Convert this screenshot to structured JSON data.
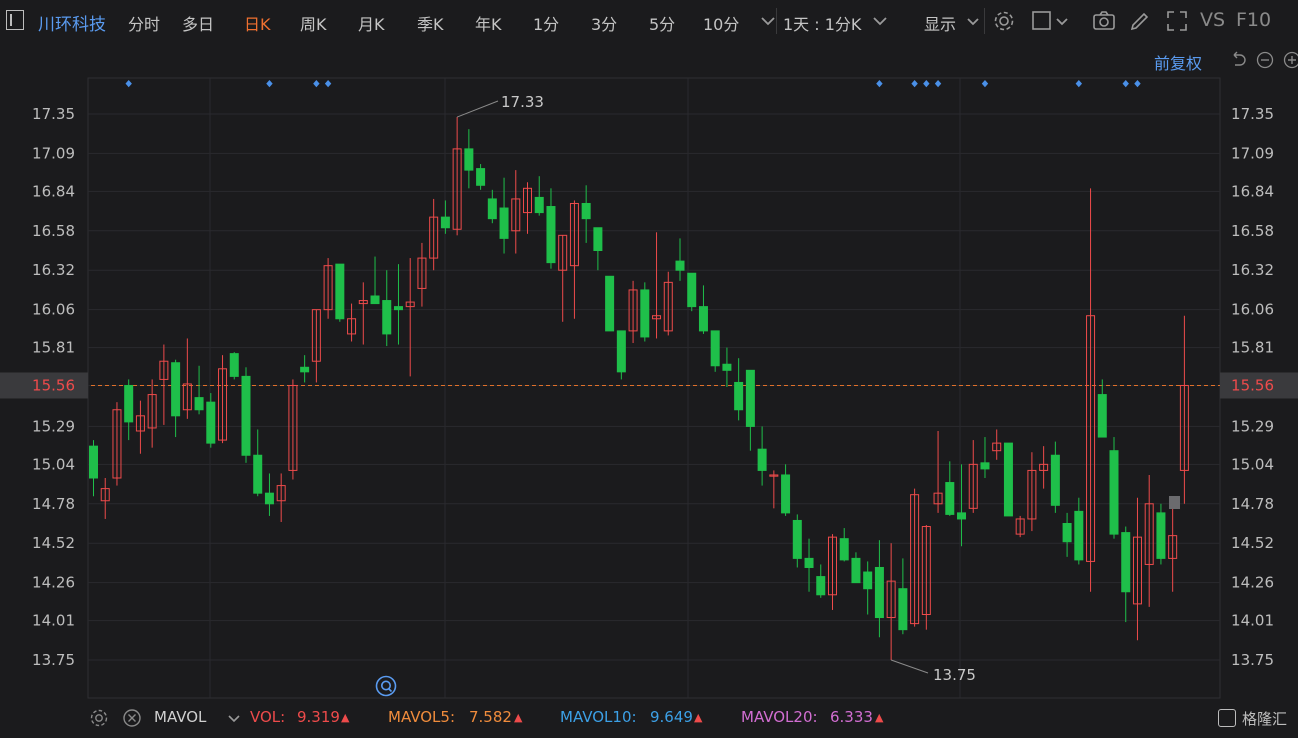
{
  "toolbar": {
    "stock_name": "川环科技",
    "periods": [
      "分时",
      "多日",
      "日K",
      "周K",
      "月K",
      "季K",
      "年K",
      "1分",
      "3分",
      "5分",
      "10分"
    ],
    "active_period": "日K",
    "interval_select": "1天 : 1分K",
    "display_label": "显示",
    "vs_label": "VS",
    "f10_label": "F10"
  },
  "adjust_label": "前复权",
  "chart_data": {
    "type": "candlestick",
    "y_ticks": [
      "17.35",
      "17.09",
      "16.84",
      "16.58",
      "16.32",
      "16.06",
      "15.81",
      "15.56",
      "15.29",
      "15.04",
      "14.78",
      "14.52",
      "14.26",
      "14.01",
      "13.75"
    ],
    "ylim": [
      13.75,
      17.35
    ],
    "current_price": "15.56",
    "annotations": {
      "max": "17.33",
      "min": "13.75"
    },
    "up_color": "#ee4b4b",
    "down_color": "#1fbf4a",
    "candles": [
      {
        "o": 15.16,
        "h": 15.2,
        "l": 14.83,
        "c": 14.95
      },
      {
        "o": 14.8,
        "h": 14.95,
        "l": 14.68,
        "c": 14.88
      },
      {
        "o": 14.95,
        "h": 15.45,
        "l": 14.9,
        "c": 15.4
      },
      {
        "o": 15.56,
        "h": 15.6,
        "l": 15.2,
        "c": 15.32
      },
      {
        "o": 15.26,
        "h": 15.46,
        "l": 15.11,
        "c": 15.36
      },
      {
        "o": 15.28,
        "h": 15.6,
        "l": 15.15,
        "c": 15.5
      },
      {
        "o": 15.6,
        "h": 15.83,
        "l": 15.3,
        "c": 15.72
      },
      {
        "o": 15.71,
        "h": 15.73,
        "l": 15.22,
        "c": 15.36
      },
      {
        "o": 15.4,
        "h": 15.87,
        "l": 15.34,
        "c": 15.57
      },
      {
        "o": 15.48,
        "h": 15.69,
        "l": 15.37,
        "c": 15.4
      },
      {
        "o": 15.45,
        "h": 15.51,
        "l": 15.15,
        "c": 15.18
      },
      {
        "o": 15.2,
        "h": 15.76,
        "l": 15.18,
        "c": 15.67
      },
      {
        "o": 15.77,
        "h": 15.78,
        "l": 15.6,
        "c": 15.62
      },
      {
        "o": 15.62,
        "h": 15.68,
        "l": 15.05,
        "c": 15.1
      },
      {
        "o": 15.1,
        "h": 15.27,
        "l": 14.83,
        "c": 14.85
      },
      {
        "o": 14.85,
        "h": 14.98,
        "l": 14.7,
        "c": 14.78
      },
      {
        "o": 14.8,
        "h": 14.98,
        "l": 14.66,
        "c": 14.9
      },
      {
        "o": 15.0,
        "h": 15.6,
        "l": 14.94,
        "c": 15.56
      },
      {
        "o": 15.68,
        "h": 15.76,
        "l": 15.58,
        "c": 15.65
      },
      {
        "o": 15.72,
        "h": 16.06,
        "l": 15.58,
        "c": 16.06
      },
      {
        "o": 16.06,
        "h": 16.4,
        "l": 16.0,
        "c": 16.35
      },
      {
        "o": 16.36,
        "h": 16.36,
        "l": 15.98,
        "c": 16.0
      },
      {
        "o": 15.9,
        "h": 16.1,
        "l": 15.85,
        "c": 16.0
      },
      {
        "o": 16.1,
        "h": 16.24,
        "l": 15.83,
        "c": 16.12
      },
      {
        "o": 16.15,
        "h": 16.41,
        "l": 16.1,
        "c": 16.1
      },
      {
        "o": 16.12,
        "h": 16.32,
        "l": 15.82,
        "c": 15.9
      },
      {
        "o": 16.08,
        "h": 16.36,
        "l": 15.83,
        "c": 16.06
      },
      {
        "o": 16.08,
        "h": 16.4,
        "l": 15.62,
        "c": 16.11
      },
      {
        "o": 16.2,
        "h": 16.5,
        "l": 16.08,
        "c": 16.4
      },
      {
        "o": 16.4,
        "h": 16.79,
        "l": 16.32,
        "c": 16.67
      },
      {
        "o": 16.67,
        "h": 16.78,
        "l": 16.56,
        "c": 16.6
      },
      {
        "o": 16.59,
        "h": 17.33,
        "l": 16.55,
        "c": 17.12
      },
      {
        "o": 17.12,
        "h": 17.25,
        "l": 16.86,
        "c": 16.98
      },
      {
        "o": 16.99,
        "h": 17.02,
        "l": 16.85,
        "c": 16.88
      },
      {
        "o": 16.79,
        "h": 16.85,
        "l": 16.63,
        "c": 16.66
      },
      {
        "o": 16.73,
        "h": 16.93,
        "l": 16.43,
        "c": 16.53
      },
      {
        "o": 16.58,
        "h": 16.98,
        "l": 16.43,
        "c": 16.79
      },
      {
        "o": 16.7,
        "h": 16.9,
        "l": 16.56,
        "c": 16.86
      },
      {
        "o": 16.8,
        "h": 16.94,
        "l": 16.68,
        "c": 16.7
      },
      {
        "o": 16.74,
        "h": 16.86,
        "l": 16.33,
        "c": 16.37
      },
      {
        "o": 16.32,
        "h": 16.55,
        "l": 15.98,
        "c": 16.55
      },
      {
        "o": 16.35,
        "h": 16.78,
        "l": 16.0,
        "c": 16.76
      },
      {
        "o": 16.76,
        "h": 16.88,
        "l": 16.5,
        "c": 16.66
      },
      {
        "o": 16.6,
        "h": 16.6,
        "l": 16.32,
        "c": 16.45
      },
      {
        "o": 16.28,
        "h": 16.28,
        "l": 15.92,
        "c": 15.92
      },
      {
        "o": 15.92,
        "h": 15.92,
        "l": 15.6,
        "c": 15.65
      },
      {
        "o": 15.92,
        "h": 16.25,
        "l": 15.84,
        "c": 16.19
      },
      {
        "o": 16.19,
        "h": 16.24,
        "l": 15.85,
        "c": 15.88
      },
      {
        "o": 16.0,
        "h": 16.57,
        "l": 15.87,
        "c": 16.02
      },
      {
        "o": 15.92,
        "h": 16.31,
        "l": 15.89,
        "c": 16.24
      },
      {
        "o": 16.38,
        "h": 16.53,
        "l": 16.25,
        "c": 16.32
      },
      {
        "o": 16.3,
        "h": 16.3,
        "l": 16.05,
        "c": 16.08
      },
      {
        "o": 16.08,
        "h": 16.22,
        "l": 15.9,
        "c": 15.92
      },
      {
        "o": 15.92,
        "h": 15.92,
        "l": 15.65,
        "c": 15.69
      },
      {
        "o": 15.7,
        "h": 15.81,
        "l": 15.55,
        "c": 15.66
      },
      {
        "o": 15.58,
        "h": 15.74,
        "l": 15.33,
        "c": 15.4
      },
      {
        "o": 15.66,
        "h": 15.66,
        "l": 15.13,
        "c": 15.29
      },
      {
        "o": 15.14,
        "h": 15.29,
        "l": 14.9,
        "c": 15.0
      },
      {
        "o": 14.97,
        "h": 15.0,
        "l": 14.75,
        "c": 14.97
      },
      {
        "o": 14.97,
        "h": 15.04,
        "l": 14.7,
        "c": 14.72
      },
      {
        "o": 14.67,
        "h": 14.71,
        "l": 14.36,
        "c": 14.42
      },
      {
        "o": 14.42,
        "h": 14.55,
        "l": 14.2,
        "c": 14.36
      },
      {
        "o": 14.3,
        "h": 14.38,
        "l": 14.16,
        "c": 14.18
      },
      {
        "o": 14.18,
        "h": 14.58,
        "l": 14.08,
        "c": 14.56
      },
      {
        "o": 14.55,
        "h": 14.62,
        "l": 14.4,
        "c": 14.41
      },
      {
        "o": 14.42,
        "h": 14.46,
        "l": 14.26,
        "c": 14.26
      },
      {
        "o": 14.33,
        "h": 14.4,
        "l": 14.05,
        "c": 14.22
      },
      {
        "o": 14.36,
        "h": 14.54,
        "l": 13.9,
        "c": 14.03
      },
      {
        "o": 14.03,
        "h": 14.52,
        "l": 13.75,
        "c": 14.27
      },
      {
        "o": 14.22,
        "h": 14.42,
        "l": 13.92,
        "c": 13.95
      },
      {
        "o": 13.99,
        "h": 14.88,
        "l": 13.97,
        "c": 14.84
      },
      {
        "o": 14.05,
        "h": 14.64,
        "l": 13.95,
        "c": 14.63
      },
      {
        "o": 14.78,
        "h": 15.26,
        "l": 14.72,
        "c": 14.85
      },
      {
        "o": 14.92,
        "h": 15.06,
        "l": 14.7,
        "c": 14.71
      },
      {
        "o": 14.72,
        "h": 15.04,
        "l": 14.5,
        "c": 14.68
      },
      {
        "o": 14.75,
        "h": 15.2,
        "l": 14.72,
        "c": 15.04
      },
      {
        "o": 15.05,
        "h": 15.22,
        "l": 14.95,
        "c": 15.01
      },
      {
        "o": 15.13,
        "h": 15.27,
        "l": 15.07,
        "c": 15.18
      },
      {
        "o": 15.18,
        "h": 15.18,
        "l": 14.7,
        "c": 14.7
      },
      {
        "o": 14.58,
        "h": 14.7,
        "l": 14.56,
        "c": 14.68
      },
      {
        "o": 14.68,
        "h": 15.12,
        "l": 14.6,
        "c": 15.0
      },
      {
        "o": 15.0,
        "h": 15.16,
        "l": 14.88,
        "c": 15.04
      },
      {
        "o": 15.1,
        "h": 15.19,
        "l": 14.72,
        "c": 14.77
      },
      {
        "o": 14.65,
        "h": 14.72,
        "l": 14.43,
        "c": 14.53
      },
      {
        "o": 14.73,
        "h": 14.82,
        "l": 14.38,
        "c": 14.41
      },
      {
        "o": 14.4,
        "h": 16.86,
        "l": 14.2,
        "c": 16.02
      },
      {
        "o": 15.5,
        "h": 15.6,
        "l": 15.22,
        "c": 15.22
      },
      {
        "o": 15.13,
        "h": 15.22,
        "l": 14.55,
        "c": 14.58
      },
      {
        "o": 14.59,
        "h": 14.63,
        "l": 14.0,
        "c": 14.2
      },
      {
        "o": 14.12,
        "h": 14.82,
        "l": 13.88,
        "c": 14.56
      },
      {
        "o": 14.38,
        "h": 14.97,
        "l": 14.1,
        "c": 14.78
      },
      {
        "o": 14.72,
        "h": 14.78,
        "l": 14.38,
        "c": 14.42
      },
      {
        "o": 14.42,
        "h": 14.79,
        "l": 14.2,
        "c": 14.57
      },
      {
        "o": 15.0,
        "h": 16.02,
        "l": 14.78,
        "c": 15.56
      }
    ],
    "event_markers": [
      3,
      15,
      19,
      20,
      67,
      70,
      71,
      72,
      76,
      84,
      88,
      89
    ]
  },
  "bottom_bar": {
    "indicator": "MAVOL",
    "vol_label": "VOL:",
    "vol_value": "9.319",
    "mavol5_label": "MAVOL5:",
    "mavol5_value": "7.582",
    "mavol10_label": "MAVOL10:",
    "mavol10_value": "9.649",
    "mavol20_label": "MAVOL20:",
    "mavol20_value": "6.333",
    "arrow": "▲",
    "watermark": "格隆汇"
  },
  "colors": {
    "accent": "#5a9bf0",
    "active": "#f07030",
    "vol": "#ee4b4b",
    "mavol5": "#f08c3c",
    "mavol10": "#3ca0e6",
    "mavol20": "#d26ed2"
  }
}
